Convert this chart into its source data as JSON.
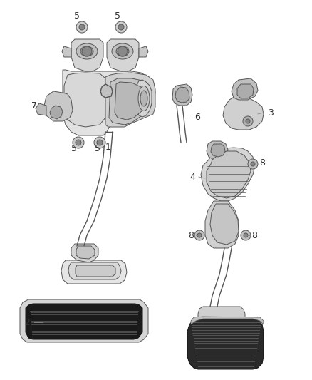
{
  "bg_color": "#ffffff",
  "lc": "#555555",
  "dc": "#222222",
  "figsize": [
    4.38,
    5.33
  ],
  "dpi": 100,
  "label_fs": 9,
  "label_color": "#333333"
}
